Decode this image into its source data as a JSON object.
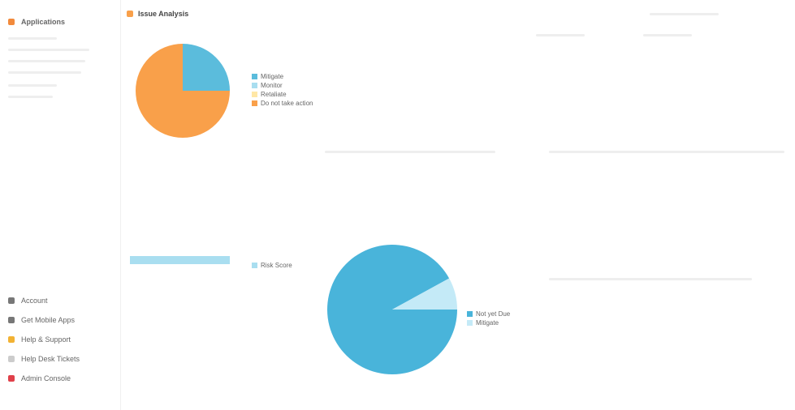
{
  "header": {
    "app": "Applications",
    "title": "Issue Analysis"
  },
  "menu": [
    "Account",
    "Get Mobile Apps",
    "Help & Support",
    "Help Desk Tickets",
    "Admin Console"
  ],
  "charts": [
    {
      "type": "pie",
      "categories": [
        "Mitigate",
        "Monitor",
        "Retaliate",
        "Do not take action"
      ],
      "values": [
        25,
        0,
        0,
        75
      ],
      "colors": [
        "#5bbcdc",
        "#a9def0",
        "#ffe7a6",
        "#f9a04a"
      ]
    },
    {
      "type": "hbar",
      "categories": [
        "Risk Score"
      ],
      "color": "#a9def0"
    },
    {
      "type": "pie",
      "categories": [
        "Not yet Due",
        "Mitigate"
      ],
      "values": [
        92,
        8
      ],
      "colors": [
        "#49b4da",
        "#c4eaf7"
      ]
    }
  ]
}
